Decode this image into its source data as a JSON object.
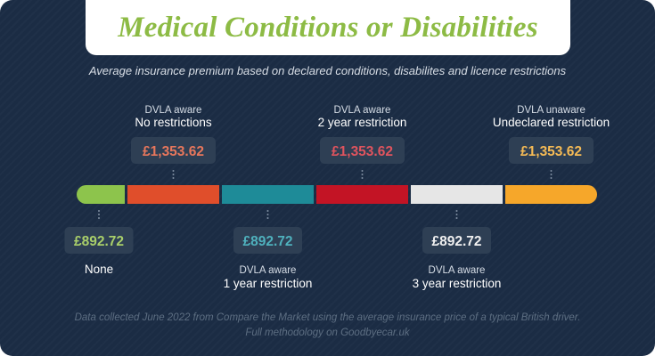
{
  "title": "Medical Conditions or Disabilities",
  "subtitle": "Average insurance premium based on declared conditions, disabilites and licence restrictions",
  "footnote": {
    "line1": "Data collected June 2022 from Compare the Market using the average insurance price of a typical British driver.",
    "line2": "Full methodology on Goodbyecar.uk"
  },
  "colors": {
    "background": "#1b2c44",
    "title": "#8dbb45",
    "value_box": "#2e3f54"
  },
  "chart_data": {
    "type": "bar",
    "title": "Medical Conditions or Disabilities",
    "categories": [
      "None",
      "DVLA aware No restrictions",
      "DVLA aware 1 year restriction",
      "DVLA aware 2 year restriction",
      "DVLA aware 3 year restriction",
      "DVLA unaware Undeclared restriction"
    ],
    "segments": [
      {
        "small": "",
        "label": "None",
        "value_label": "£892.72",
        "value": 892.72,
        "color": "#8dc44c",
        "value_color": "#a9cf6a",
        "position": "below"
      },
      {
        "small": "DVLA aware",
        "label": "No restrictions",
        "value_label": "£1,353.62",
        "value": 1353.62,
        "color": "#e04e2b",
        "value_color": "#e8775c",
        "position": "above"
      },
      {
        "small": "DVLA aware",
        "label": "1 year restriction",
        "value_label": "£892.72",
        "value": 892.72,
        "color": "#1e8b98",
        "value_color": "#4fb1bd",
        "position": "below"
      },
      {
        "small": "DVLA aware",
        "label": "2 year restriction",
        "value_label": "£1,353.62",
        "value": 1353.62,
        "color": "#c31425",
        "value_color": "#e0545e",
        "position": "above"
      },
      {
        "small": "DVLA aware",
        "label": "3 year restriction",
        "value_label": "£892.72",
        "value": 892.72,
        "color": "#e6e6e6",
        "value_color": "#f0f0f0",
        "position": "below"
      },
      {
        "small": "DVLA unaware",
        "label": "Undeclared restriction",
        "value_label": "£1,353.62",
        "value": 1353.62,
        "color": "#f6a72a",
        "value_color": "#f6bb55",
        "position": "above"
      }
    ]
  }
}
